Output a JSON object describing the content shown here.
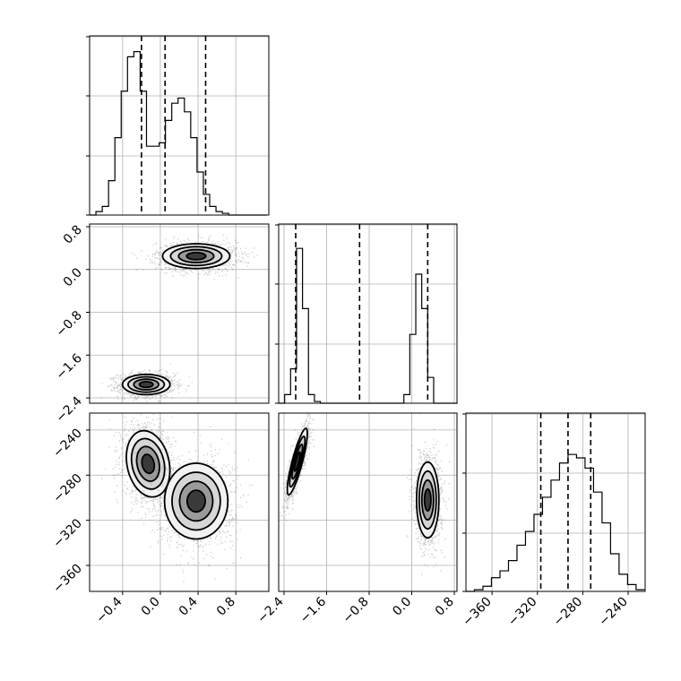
{
  "chart_data": {
    "type": "corner",
    "grid": true,
    "parameters": [
      {
        "range": [
          -0.75,
          1.15
        ],
        "ticks": [
          -0.4,
          0.0,
          0.4,
          0.8
        ],
        "tick_labels": [
          "−0.4",
          "0.0",
          "0.4",
          "0.8"
        ],
        "quantiles": [
          -0.2,
          0.05,
          0.48
        ]
      },
      {
        "range": [
          -2.5,
          0.85
        ],
        "ticks": [
          -2.4,
          -1.6,
          -0.8,
          0.0,
          0.8
        ],
        "tick_labels": [
          "−2.4",
          "−1.6",
          "−0.8",
          "0.0",
          "0.8"
        ],
        "quantiles": [
          -2.18,
          -0.98,
          0.3
        ]
      },
      {
        "range": [
          -383,
          -225
        ],
        "ticks": [
          -360,
          -320,
          -280,
          -240
        ],
        "tick_labels": [
          "−360",
          "−320",
          "−280",
          "−240"
        ],
        "quantiles": [
          -317,
          -293,
          -273
        ]
      }
    ],
    "histograms": [
      {
        "param": 0,
        "bin_start": -0.75,
        "bin_width": 0.067,
        "counts": [
          0.0,
          0.02,
          0.05,
          0.2,
          0.45,
          0.72,
          0.92,
          0.95,
          0.72,
          0.4,
          0.4,
          0.42,
          0.55,
          0.65,
          0.68,
          0.6,
          0.45,
          0.25,
          0.12,
          0.05,
          0.02,
          0.01,
          0.0,
          0.0,
          0.0,
          0.0,
          0.0,
          0.0
        ]
      },
      {
        "param": 1,
        "bin_start": -2.5,
        "bin_width": 0.112,
        "counts": [
          0.0,
          0.05,
          0.2,
          0.9,
          0.55,
          0.05,
          0.01,
          0.0,
          0.0,
          0.0,
          0.0,
          0.0,
          0.0,
          0.0,
          0.0,
          0.0,
          0.0,
          0.0,
          0.0,
          0.0,
          0.0,
          0.05,
          0.4,
          0.75,
          0.55,
          0.15,
          0.0,
          0.0,
          0.0,
          0.0
        ]
      },
      {
        "param": 2,
        "bin_start": -383,
        "bin_width": 7.5,
        "counts": [
          0.0,
          0.01,
          0.03,
          0.08,
          0.12,
          0.18,
          0.27,
          0.35,
          0.45,
          0.55,
          0.65,
          0.75,
          0.8,
          0.78,
          0.72,
          0.58,
          0.4,
          0.22,
          0.1,
          0.04,
          0.01
        ]
      }
    ],
    "scatter_panels": [
      {
        "x_param": 0,
        "y_param": 1,
        "clusters": [
          {
            "center": [
              -0.15,
              -2.15
            ],
            "sd": [
              0.12,
              0.09
            ],
            "rho": 0.0
          },
          {
            "center": [
              0.38,
              0.25
            ],
            "sd": [
              0.17,
              0.11
            ],
            "rho": 0.0
          }
        ]
      },
      {
        "x_param": 0,
        "y_param": 2,
        "clusters": [
          {
            "center": [
              -0.13,
              -270
            ],
            "sd": [
              0.11,
              14
            ],
            "rho": -0.2
          },
          {
            "center": [
              0.38,
              -303
            ],
            "sd": [
              0.16,
              16
            ],
            "rho": 0.0
          }
        ]
      },
      {
        "x_param": 1,
        "y_param": 2,
        "clusters": [
          {
            "center": [
              -2.15,
              -268
            ],
            "sd": [
              0.09,
              14
            ],
            "rho": 0.85
          },
          {
            "center": [
              0.3,
              -302
            ],
            "sd": [
              0.1,
              16
            ],
            "rho": 0.0
          }
        ]
      }
    ]
  }
}
